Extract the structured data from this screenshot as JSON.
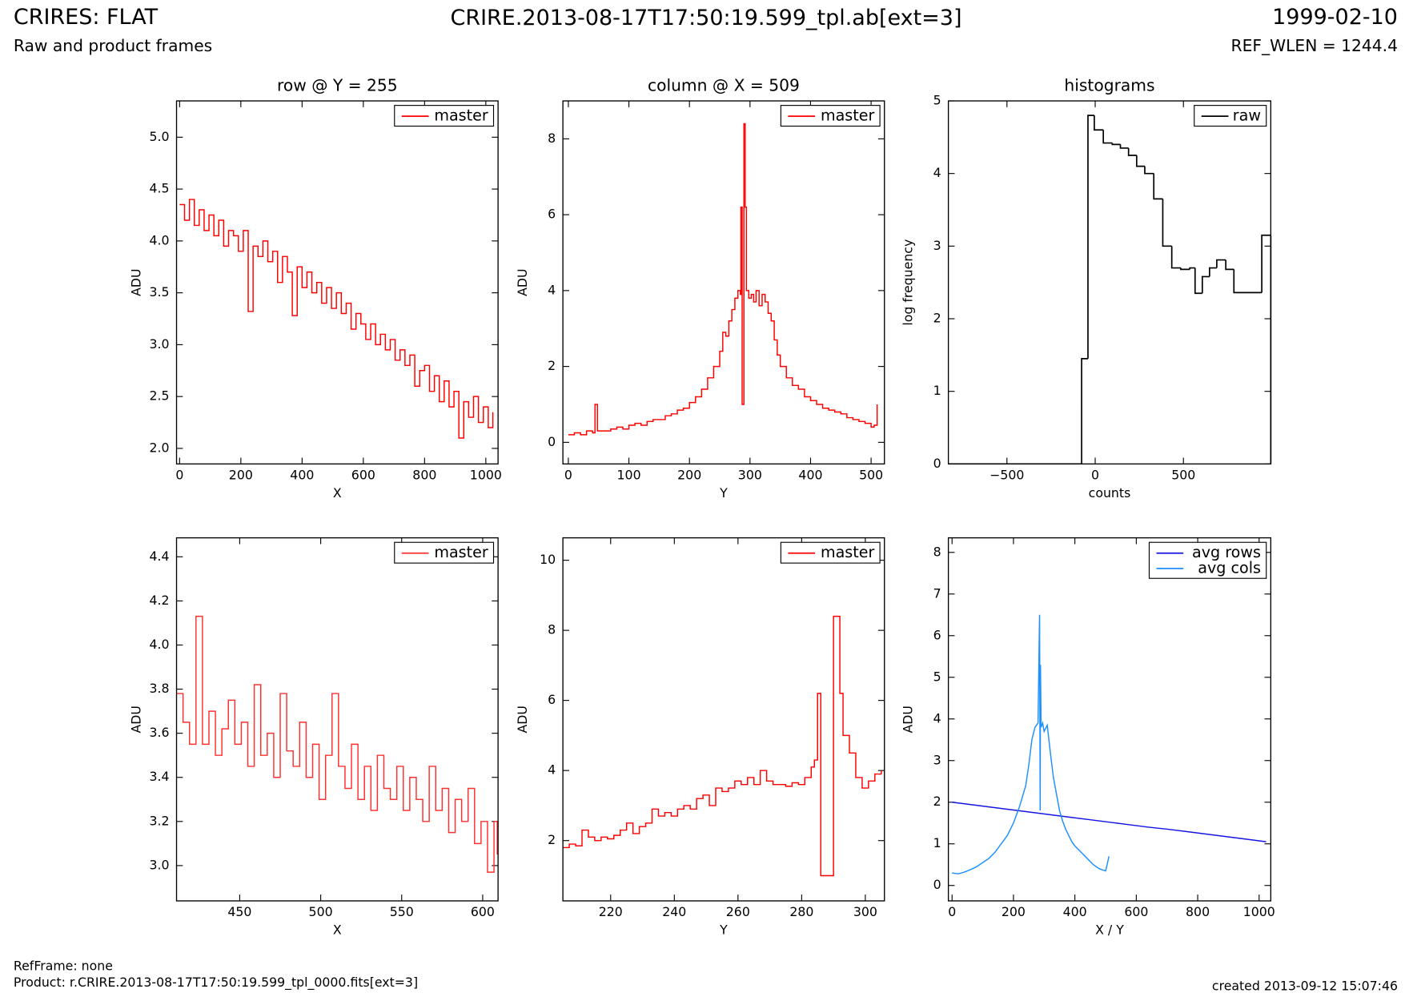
{
  "header": {
    "title": "CRIRES: FLAT",
    "subtitle": "Raw and product frames",
    "file": "CRIRE.2013-08-17T17:50:19.599_tpl.ab[ext=3]",
    "date": "1999-02-10",
    "ref_wlen": "REF_WLEN = 1244.4"
  },
  "footer": {
    "refframe": "RefFrame: none",
    "product": "Product: r.CRIRE.2013-08-17T17:50:19.599_tpl_0000.fits[ext=3]",
    "created": "created 2013-09-12 15:07:46"
  },
  "chart_data": [
    {
      "type": "line",
      "step": true,
      "title": "row @ Y = 255",
      "xlabel": "X",
      "ylabel": "ADU",
      "legend": "upper right",
      "xlim": [
        -10,
        1040
      ],
      "ylim": [
        1.85,
        5.35
      ],
      "xticks": [
        0,
        200,
        400,
        600,
        800,
        1000
      ],
      "yticks": [
        {
          "value": 2,
          "label": "2.0"
        },
        {
          "value": 2.5,
          "label": "2.5"
        },
        {
          "value": 3,
          "label": "3.0"
        },
        {
          "value": 3.5,
          "label": "3.5"
        },
        {
          "value": 4,
          "label": "4.0"
        },
        {
          "value": 4.5,
          "label": "4.5"
        },
        {
          "value": 5,
          "label": "5.0"
        }
      ],
      "series": [
        {
          "name": "master",
          "color": "#ff0000",
          "x": [
            0,
            16,
            32,
            48,
            64,
            80,
            96,
            112,
            128,
            144,
            160,
            176,
            192,
            208,
            224,
            240,
            256,
            272,
            288,
            304,
            320,
            336,
            352,
            368,
            384,
            400,
            416,
            432,
            448,
            464,
            480,
            496,
            512,
            528,
            544,
            560,
            576,
            592,
            608,
            624,
            640,
            656,
            672,
            688,
            704,
            720,
            736,
            752,
            768,
            784,
            800,
            816,
            832,
            848,
            864,
            880,
            896,
            912,
            928,
            944,
            960,
            976,
            992,
            1008,
            1023
          ],
          "values": [
            4.35,
            4.2,
            4.4,
            4.15,
            4.3,
            4.1,
            4.25,
            4.05,
            4.2,
            3.95,
            4.1,
            4.05,
            3.9,
            4.1,
            3.32,
            3.95,
            3.85,
            4.0,
            3.8,
            3.9,
            3.6,
            3.85,
            3.7,
            3.28,
            3.75,
            3.55,
            3.7,
            3.5,
            3.6,
            3.4,
            3.55,
            3.35,
            3.5,
            3.3,
            3.4,
            3.15,
            3.3,
            3.2,
            3.05,
            3.2,
            3.0,
            3.1,
            2.95,
            3.05,
            2.85,
            2.95,
            2.8,
            2.9,
            2.6,
            2.75,
            2.8,
            2.55,
            2.7,
            2.45,
            2.65,
            2.4,
            2.55,
            2.1,
            2.45,
            2.3,
            2.5,
            2.25,
            2.4,
            2.2,
            2.35
          ]
        }
      ]
    },
    {
      "type": "line",
      "step": true,
      "title": "column @ X = 509",
      "xlabel": "Y",
      "ylabel": "ADU",
      "legend": "upper right",
      "xlim": [
        -9,
        522
      ],
      "ylim": [
        -0.57,
        9.0
      ],
      "xticks": [
        0,
        100,
        200,
        300,
        400,
        500
      ],
      "yticks": [
        0,
        2,
        4,
        6,
        8
      ],
      "series": [
        {
          "name": "master",
          "color": "#ff0000",
          "x": [
            0,
            10,
            20,
            30,
            40,
            44,
            48,
            60,
            70,
            80,
            90,
            100,
            110,
            120,
            130,
            140,
            150,
            160,
            170,
            180,
            190,
            200,
            210,
            220,
            230,
            240,
            250,
            255,
            260,
            265,
            270,
            275,
            280,
            284,
            285,
            287,
            290,
            292,
            294,
            298,
            302,
            306,
            310,
            315,
            320,
            325,
            330,
            335,
            340,
            345,
            350,
            360,
            370,
            380,
            390,
            400,
            410,
            420,
            430,
            440,
            450,
            460,
            470,
            480,
            490,
            500,
            505,
            510
          ],
          "values": [
            0.2,
            0.25,
            0.2,
            0.3,
            0.25,
            1.0,
            0.3,
            0.3,
            0.35,
            0.4,
            0.35,
            0.45,
            0.5,
            0.45,
            0.55,
            0.6,
            0.6,
            0.7,
            0.75,
            0.85,
            0.9,
            1.05,
            1.2,
            1.4,
            1.7,
            2.0,
            2.4,
            2.9,
            2.8,
            3.2,
            3.5,
            3.8,
            4.0,
            3.9,
            6.2,
            1.0,
            8.4,
            6.2,
            4.0,
            3.8,
            3.9,
            3.7,
            4.0,
            3.6,
            3.9,
            3.7,
            3.4,
            3.2,
            2.7,
            2.3,
            2.0,
            1.7,
            1.5,
            1.4,
            1.2,
            1.1,
            1.0,
            0.9,
            0.85,
            0.8,
            0.75,
            0.65,
            0.6,
            0.55,
            0.5,
            0.4,
            0.45,
            1.0
          ]
        }
      ]
    },
    {
      "type": "histogram",
      "title": "histograms",
      "xlabel": "counts",
      "ylabel": "log frequency",
      "legend": "upper right",
      "xlim": [
        -832,
        995
      ],
      "ylim": [
        0,
        5
      ],
      "xticks": [
        {
          "value": -500,
          "label": "−500"
        },
        0,
        500
      ],
      "yticks": [
        0,
        1,
        2,
        3,
        4,
        5
      ],
      "series": [
        {
          "name": "raw",
          "color": "#000000",
          "bins": [
            -832,
            -77,
            -41,
            -5,
            46,
            97,
            143,
            189,
            235,
            281,
            332,
            383,
            434,
            485,
            536,
            566,
            607,
            648,
            689,
            740,
            786,
            944,
            995
          ],
          "values": [
            0,
            1.45,
            4.8,
            4.6,
            4.42,
            4.4,
            4.35,
            4.25,
            4.1,
            4.0,
            3.65,
            3.0,
            2.7,
            2.68,
            2.7,
            2.35,
            2.58,
            2.7,
            2.81,
            2.68,
            2.36,
            3.15
          ]
        }
      ]
    },
    {
      "type": "line",
      "step": true,
      "xlabel": "X",
      "ylabel": "ADU",
      "legend": "upper right",
      "xlim": [
        411,
        609.5
      ],
      "ylim": [
        2.84,
        4.486
      ],
      "xticks": [
        450,
        500,
        550,
        600
      ],
      "yticks": [
        {
          "value": 3,
          "label": "3.0"
        },
        {
          "value": 3.2,
          "label": "3.2"
        },
        {
          "value": 3.4,
          "label": "3.4"
        },
        {
          "value": 3.6,
          "label": "3.6"
        },
        {
          "value": 3.8,
          "label": "3.8"
        },
        {
          "value": 4,
          "label": "4.0"
        },
        {
          "value": 4.2,
          "label": "4.2"
        },
        {
          "value": 4.4,
          "label": "4.4"
        }
      ],
      "series": [
        {
          "name": "master",
          "color": "#ff3030",
          "x": [
            411,
            415,
            419,
            423,
            427,
            431,
            435,
            439,
            443,
            447,
            451,
            455,
            459,
            463,
            467,
            471,
            475,
            479,
            483,
            487,
            491,
            495,
            499,
            503,
            507,
            511,
            515,
            519,
            523,
            527,
            531,
            535,
            539,
            543,
            547,
            551,
            555,
            559,
            563,
            567,
            571,
            575,
            579,
            583,
            587,
            591,
            595,
            599,
            603,
            607,
            609
          ],
          "values": [
            3.78,
            3.65,
            3.55,
            4.13,
            3.55,
            3.7,
            3.5,
            3.62,
            3.75,
            3.55,
            3.65,
            3.45,
            3.82,
            3.5,
            3.6,
            3.4,
            3.78,
            3.52,
            3.45,
            3.65,
            3.4,
            3.55,
            3.3,
            3.5,
            3.78,
            3.45,
            3.35,
            3.55,
            3.3,
            3.45,
            3.25,
            3.5,
            3.35,
            3.3,
            3.45,
            3.25,
            3.4,
            3.3,
            3.2,
            3.45,
            3.25,
            3.35,
            3.15,
            3.3,
            3.2,
            3.35,
            3.1,
            3.2,
            2.97,
            3.2,
            3.05
          ]
        }
      ]
    },
    {
      "type": "line",
      "step": true,
      "xlabel": "Y",
      "ylabel": "ADU",
      "legend": "upper right",
      "xlim": [
        205,
        306
      ],
      "ylim": [
        0.28,
        10.64
      ],
      "xticks": [
        220,
        240,
        260,
        280,
        300
      ],
      "yticks": [
        2,
        4,
        6,
        8,
        10
      ],
      "series": [
        {
          "name": "master",
          "color": "#ff0000",
          "x": [
            205,
            207,
            209,
            211,
            213,
            215,
            217,
            219,
            221,
            223,
            225,
            227,
            229,
            231,
            233,
            235,
            237,
            239,
            241,
            243,
            245,
            247,
            249,
            251,
            253,
            255,
            257,
            259,
            261,
            263,
            265,
            267,
            269,
            271,
            273,
            275,
            277,
            279,
            281,
            283,
            284,
            285,
            286,
            290,
            292,
            293,
            295,
            297,
            299,
            301,
            303,
            305
          ],
          "values": [
            1.8,
            1.9,
            1.85,
            2.3,
            2.1,
            2.0,
            2.1,
            2.05,
            2.15,
            2.3,
            2.5,
            2.2,
            2.4,
            2.5,
            2.9,
            2.7,
            2.8,
            2.7,
            2.9,
            3.0,
            2.9,
            3.2,
            3.3,
            3.0,
            3.5,
            3.4,
            3.5,
            3.7,
            3.6,
            3.8,
            3.6,
            4.0,
            3.7,
            3.6,
            3.6,
            3.55,
            3.65,
            3.6,
            3.8,
            4.1,
            4.3,
            6.2,
            1.0,
            8.4,
            6.2,
            5.0,
            4.5,
            3.8,
            3.5,
            3.7,
            3.9,
            4.0
          ]
        }
      ]
    },
    {
      "type": "line",
      "step": false,
      "xlabel": "X / Y",
      "ylabel": "ADU",
      "legend": "upper right",
      "xlim": [
        -12,
        1038
      ],
      "ylim": [
        -0.37,
        8.35
      ],
      "xticks": [
        0,
        200,
        400,
        600,
        800,
        1000
      ],
      "yticks": [
        0,
        1,
        2,
        3,
        4,
        5,
        6,
        7,
        8
      ],
      "series": [
        {
          "name": "avg rows",
          "color": "#1515e0",
          "x": [
            0,
            64,
            128,
            192,
            256,
            320,
            384,
            448,
            512,
            576,
            640,
            704,
            768,
            832,
            896,
            960,
            1023
          ],
          "values": [
            2.0,
            1.94,
            1.88,
            1.82,
            1.76,
            1.7,
            1.64,
            1.58,
            1.52,
            1.46,
            1.4,
            1.35,
            1.29,
            1.23,
            1.17,
            1.11,
            1.05
          ]
        },
        {
          "name": "avg cols",
          "color": "#1e90ff",
          "x": [
            0,
            20,
            40,
            60,
            80,
            100,
            120,
            140,
            160,
            180,
            200,
            220,
            240,
            250,
            260,
            270,
            280,
            285,
            287,
            288,
            290,
            295,
            300,
            310,
            320,
            330,
            340,
            350,
            360,
            370,
            380,
            390,
            400,
            420,
            440,
            460,
            480,
            500,
            505,
            511
          ],
          "values": [
            0.3,
            0.28,
            0.32,
            0.38,
            0.45,
            0.55,
            0.65,
            0.8,
            1.0,
            1.2,
            1.5,
            1.9,
            2.4,
            2.9,
            3.5,
            3.8,
            3.9,
            6.5,
            1.8,
            5.3,
            3.8,
            3.9,
            3.7,
            3.85,
            3.2,
            2.6,
            2.2,
            1.8,
            1.55,
            1.35,
            1.2,
            1.05,
            0.95,
            0.8,
            0.65,
            0.5,
            0.4,
            0.35,
            0.5,
            0.7
          ]
        }
      ]
    }
  ]
}
